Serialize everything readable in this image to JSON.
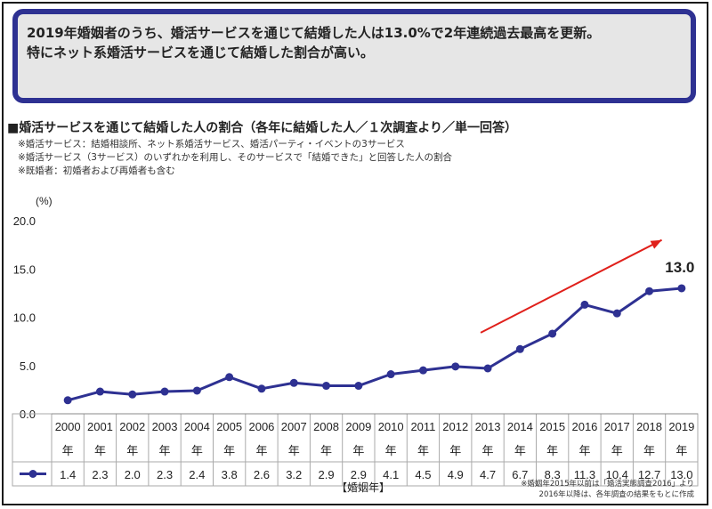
{
  "headline": "2019年婚姻者のうち、婚活サービスを通じて結婚した人は13.0%で2年連続過去最高を更新。\n特にネット系婚活サービスを通じて結婚した割合が高い。",
  "section_title": "■婚活サービスを通じて結婚した人の割合（各年に結婚した人／１次調査より／単一回答）",
  "notes": [
    "※婚活サービス：結婚相談所、ネット系婚活サービス、婚活パーティ・イベントの3サービス",
    "※婚活サービス（3サービス）のいずれかを利用し、そのサービスで「結婚できた」と回答した人の割合",
    "※既婚者：初婚者および再婚者も含む"
  ],
  "footnote": [
    "※婚姻年2015年以前は「婚活実態調査2016」より",
    "2016年以降は、各年調査の結果をもとに作成"
  ],
  "colors": {
    "line": "#2e3192",
    "arrow": "#e0201b",
    "border": "#2e3192",
    "headline_bg": "#e6e6e6"
  },
  "chart_data": {
    "type": "line",
    "ylabel": "(%)",
    "xlabel": "【婚姻年】",
    "ylim": [
      0,
      20
    ],
    "yticks": [
      "0.0",
      "5.0",
      "10.0",
      "15.0",
      "20.0"
    ],
    "year_unit": "年",
    "categories": [
      "2000",
      "2001",
      "2002",
      "2003",
      "2004",
      "2005",
      "2006",
      "2007",
      "2008",
      "2009",
      "2010",
      "2011",
      "2012",
      "2013",
      "2014",
      "2015",
      "2016",
      "2017",
      "2018",
      "2019"
    ],
    "series": [
      {
        "values": [
          1.4,
          2.3,
          2.0,
          2.3,
          2.4,
          3.8,
          2.6,
          3.2,
          2.9,
          2.9,
          4.1,
          4.5,
          4.9,
          4.7,
          6.7,
          8.3,
          11.3,
          10.4,
          12.7,
          13.0
        ],
        "labels": [
          "1.4",
          "2.3",
          "2.0",
          "2.3",
          "2.4",
          "3.8",
          "2.6",
          "3.2",
          "2.9",
          "2.9",
          "4.1",
          "4.5",
          "4.9",
          "4.7",
          "6.7",
          "8.3",
          "11.3",
          "10.4",
          "12.7",
          "13.0"
        ]
      }
    ],
    "annotation": "13.0",
    "grid": false,
    "legend": "table"
  }
}
